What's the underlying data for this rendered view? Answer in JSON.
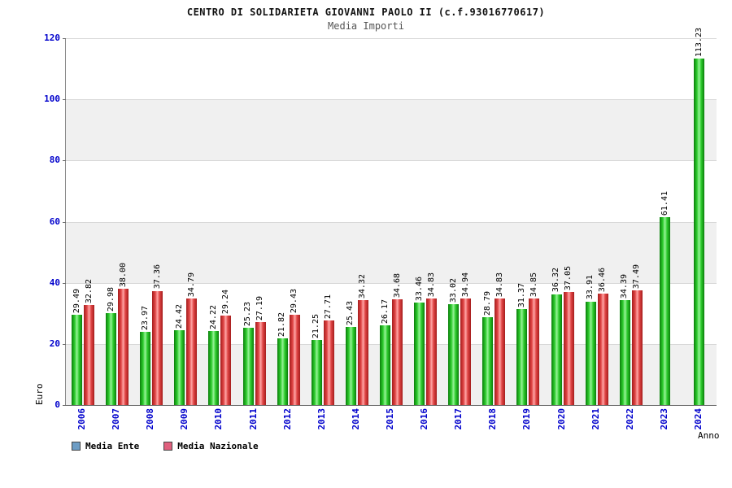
{
  "header": {
    "title": "CENTRO DI SOLIDARIETA GIOVANNI PAOLO II (c.f.93016770617)",
    "subtitle": "Media Importi"
  },
  "legend": {
    "items": [
      {
        "label": "Media Ente",
        "swatch_color": "#6d9dc5"
      },
      {
        "label": "Media Nazionale",
        "swatch_color": "#e0607e"
      }
    ]
  },
  "chart_data": {
    "type": "bar",
    "title": "Media Importi",
    "xlabel": "Anno",
    "ylabel": "Euro",
    "ylim": [
      0,
      120
    ],
    "y_ticks": [
      0,
      20,
      40,
      60,
      80,
      100,
      120
    ],
    "band_colors": [
      "#f0f0f0",
      "#ffffff"
    ],
    "grid": true,
    "legend_position": "bottom-left",
    "categories": [
      "2006",
      "2007",
      "2008",
      "2009",
      "2010",
      "2011",
      "2012",
      "2013",
      "2014",
      "2015",
      "2016",
      "2017",
      "2018",
      "2019",
      "2020",
      "2021",
      "2022",
      "2023",
      "2024"
    ],
    "series": [
      {
        "name": "Media Ente",
        "color": "#22b422",
        "values": [
          "29.49",
          "29.98",
          "23.97",
          "24.42",
          "24.22",
          "25.23",
          "21.82",
          "21.25",
          "25.43",
          "26.17",
          "33.46",
          "33.02",
          "28.79",
          "31.37",
          "36.32",
          "33.91",
          "34.39",
          "61.41",
          "113.23"
        ]
      },
      {
        "name": "Media Nazionale",
        "color": "#e04545",
        "values": [
          "32.82",
          "38.00",
          "37.36",
          "34.79",
          "29.24",
          "27.19",
          "29.43",
          "27.71",
          "34.32",
          "34.68",
          "34.83",
          "34.94",
          "34.83",
          "34.85",
          "37.05",
          "36.46",
          "37.49",
          null,
          null
        ]
      }
    ]
  }
}
